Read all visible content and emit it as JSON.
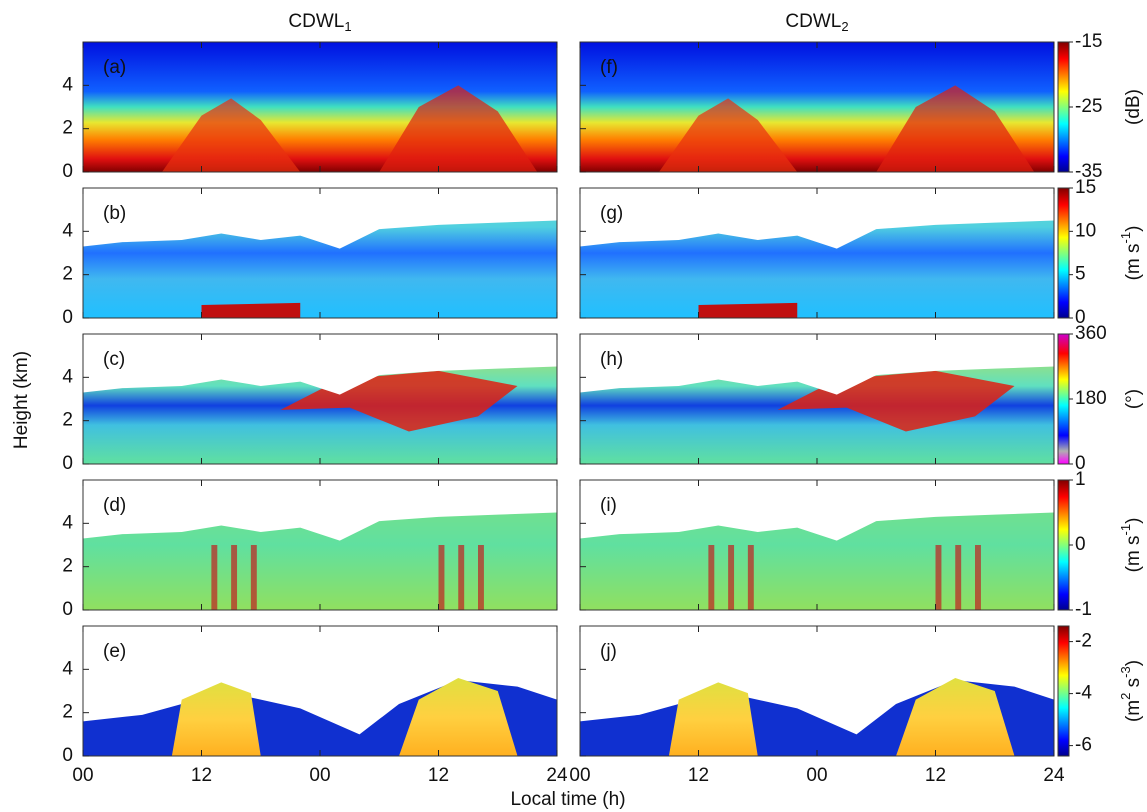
{
  "chart_data": {
    "type": "heatmap",
    "column_titles": [
      {
        "main": "CDWL",
        "sub": "1"
      },
      {
        "main": "CDWL",
        "sub": "2"
      }
    ],
    "xlabel": "Local time (h)",
    "ylabel": "Height (km)",
    "xlim": [
      0,
      48
    ],
    "xticks": [
      {
        "value": 0,
        "label": "00"
      },
      12,
      {
        "value": 24,
        "label": "00"
      },
      {
        "value": 36,
        "label": "12"
      },
      {
        "value": 48,
        "label": "24"
      }
    ],
    "ylim": [
      0,
      6
    ],
    "yticks": [
      0,
      2,
      4
    ],
    "panels": [
      "(a)",
      "(b)",
      "(c)",
      "(d)",
      "(e)",
      "(f)",
      "(g)",
      "(h)",
      "(i)",
      "(j)"
    ],
    "rows": [
      {
        "clim": [
          -35,
          -15
        ],
        "cticks": [
          -15,
          -25,
          -35
        ],
        "unit": [
          {
            "text": "(dB)"
          }
        ]
      },
      {
        "clim": [
          0,
          15
        ],
        "cticks": [
          15,
          10,
          5,
          0
        ],
        "unit": [
          {
            "text": "(m s"
          },
          {
            "sup": "-1"
          },
          {
            "text": ")"
          }
        ]
      },
      {
        "clim": [
          0,
          360
        ],
        "cticks": [
          360,
          180,
          0
        ],
        "unit": [
          {
            "text": "(°)"
          }
        ]
      },
      {
        "clim": [
          -1,
          1
        ],
        "cticks": [
          1,
          0,
          -1
        ],
        "unit": [
          {
            "text": "(m s"
          },
          {
            "sup": "-1"
          },
          {
            "text": ")"
          }
        ]
      },
      {
        "clim": [
          -6.4,
          -1.4
        ],
        "cticks": [
          -2,
          -4,
          -6
        ],
        "unit": [
          {
            "text": "(m"
          },
          {
            "sup": "2"
          },
          {
            "text": " s"
          },
          {
            "sup": "-3"
          },
          {
            "text": ")"
          }
        ]
      }
    ]
  }
}
